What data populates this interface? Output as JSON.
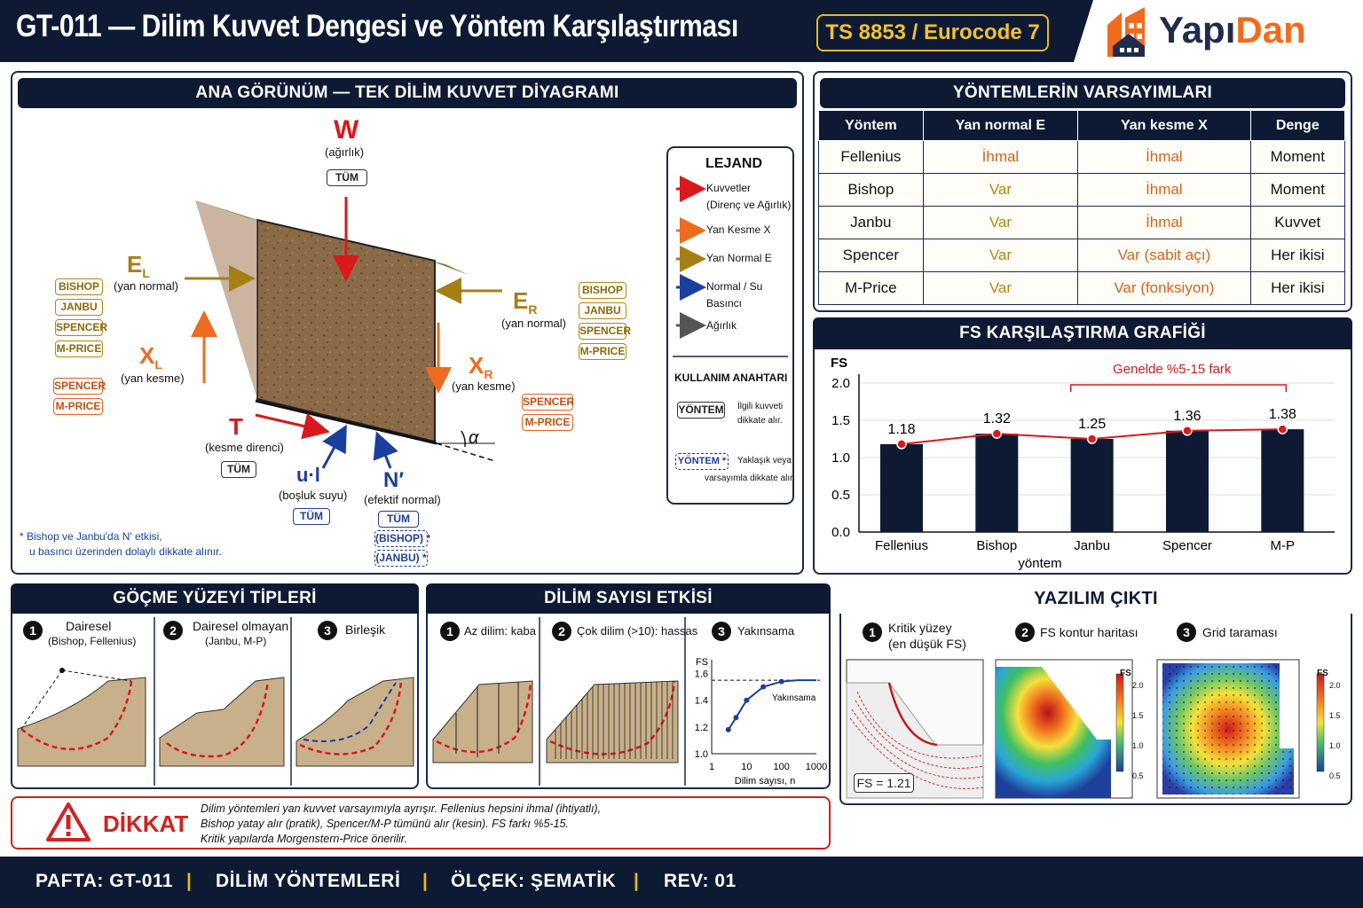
{
  "header": {
    "title": "GT-011 — Dilim Kuvvet Dengesi ve Yöntem Karşılaştırması",
    "standard": "TS 8853 / Eurocode 7",
    "logo_part1": "Yapı",
    "logo_part2": "Dan"
  },
  "main": {
    "title": "ANA GÖRÜNÜM — TEK DİLİM KUVVET DİYAGRAMI",
    "W": "W",
    "W_desc": "(ağırlık)",
    "W_tag": "TÜM",
    "EL": "E",
    "EL_sub": "L",
    "EL_desc": "(yan normal)",
    "EL_tags": [
      "BISHOP",
      "JANBU",
      "SPENCER",
      "M-PRICE"
    ],
    "XL": "X",
    "XL_sub": "L",
    "XL_desc": "(yan kesme)",
    "XL_tags": [
      "SPENCER",
      "M-PRICE"
    ],
    "ER": "E",
    "ER_sub": "R",
    "ER_desc": "(yan normal)",
    "ER_tags": [
      "BISHOP",
      "JANBU",
      "SPENCER",
      "M-PRICE"
    ],
    "XR": "X",
    "XR_sub": "R",
    "XR_desc": "(yan kesme)",
    "XR_tags": [
      "SPENCER",
      "M-PRICE"
    ],
    "T": "T",
    "T_desc": "(kesme direnci)",
    "T_tag": "TÜM",
    "ul": "u·l",
    "ul_desc": "(boşluk suyu)",
    "ul_tag": "TÜM",
    "N": "N′",
    "N_desc": "(efektif normal)",
    "N_tags": [
      "TÜM",
      "(BISHOP) *",
      "(JANBU) *"
    ],
    "alpha": "α",
    "note1": "*  Bishop ve Janbu'da N′ etkisi,",
    "note2": "u basıncı üzerinden dolaylı dikkate alınır.",
    "legend": {
      "title": "LEJAND",
      "items": [
        "Kuvvetler",
        "(Direnç ve Ağırlık)",
        "Yan Kesme X",
        "Yan Normal E",
        "Normal / Su",
        "Basıncı",
        "Ağırlık"
      ],
      "colors": {
        "force": "#d9191c",
        "shear": "#ef6b1f",
        "normal": "#a67f14",
        "water": "#1b3f9c",
        "weight": "#555555"
      },
      "key_title": "KULLANIM ANAHTARI",
      "key1_tag": "YÖNTEM",
      "key1_desc1": "İlgili kuvveti",
      "key1_desc2": "dikkate alır.",
      "key2_tag": "YÖNTEM *",
      "key2_desc1": "Yaklaşık veya",
      "key2_desc2": "varsayımla dikkate alır."
    }
  },
  "assumptions": {
    "title": "YÖNTEMLERİN VARSAYIMLARI",
    "headers": [
      "Yöntem",
      "Yan normal E",
      "Yan kesme X",
      "Denge"
    ],
    "rows": [
      [
        "Fellenius",
        "İhmal",
        "İhmal",
        "Moment"
      ],
      [
        "Bishop",
        "Var",
        "İhmal",
        "Moment"
      ],
      [
        "Janbu",
        "Var",
        "İhmal",
        "Kuvvet"
      ],
      [
        "Spencer",
        "Var",
        "Var (sabit açı)",
        "Her ikisi"
      ],
      [
        "M-Price",
        "Var",
        "Var (fonksiyon)",
        "Her ikisi"
      ]
    ]
  },
  "fs_chart": {
    "title": "FS KARŞILAŞTIRMA GRAFİĞİ",
    "annotation": "Genelde %5-15 fark"
  },
  "chart_data": [
    {
      "type": "bar",
      "title": "FS KARŞILAŞTIRMA GRAFİĞİ",
      "xlabel": "yöntem",
      "ylabel": "FS",
      "categories": [
        "Fellenius",
        "Bishop",
        "Janbu",
        "Spencer",
        "M-P"
      ],
      "values": [
        1.18,
        1.32,
        1.25,
        1.36,
        1.38
      ],
      "ylim": [
        0,
        2.0
      ],
      "yticks": [
        "0.0",
        "0.5",
        "1.0",
        "1.5",
        "2.0"
      ],
      "bar_color": "#0e1a33",
      "line_color": "#d9191c"
    },
    {
      "type": "line",
      "xlabel": "Dilim sayısı, n",
      "ylabel": "FS",
      "x": [
        3,
        5,
        10,
        30,
        100,
        300,
        1000
      ],
      "values": [
        1.18,
        1.27,
        1.4,
        1.5,
        1.54,
        1.55,
        1.55
      ],
      "xticks": [
        "1",
        "10",
        "100",
        "1000"
      ],
      "yticks": [
        "1.0",
        "1.2",
        "1.4",
        "1.6"
      ],
      "ylim": [
        1.0,
        1.65
      ],
      "asymptote": 1.55,
      "annotation": "Yakınsama"
    }
  ],
  "failure": {
    "title": "GÖÇME YÜZEYİ TİPLERİ",
    "items": [
      {
        "n": "1",
        "t": "Dairesel",
        "s": "(Bishop, Fellenius)"
      },
      {
        "n": "2",
        "t": "Dairesel olmayan",
        "s": "(Janbu, M-P)"
      },
      {
        "n": "3",
        "t": "Birleşik",
        "s": ""
      }
    ]
  },
  "slices": {
    "title": "DİLİM SAYISI ETKİSİ",
    "items": [
      {
        "n": "1",
        "t": "Az dilim: kaba"
      },
      {
        "n": "2",
        "t": "Çok dilim (>10): hassas"
      },
      {
        "n": "3",
        "t": "Yakınsama"
      }
    ]
  },
  "software": {
    "title": "YAZILIM ÇIKTI",
    "items": [
      {
        "n": "1",
        "t": "Kritik yüzey",
        "s": "(en düşük FS)"
      },
      {
        "n": "2",
        "t": "FS kontur haritası",
        "s": ""
      },
      {
        "n": "3",
        "t": "Grid taraması",
        "s": ""
      }
    ],
    "fs_value": "FS = 1.21",
    "scale_title": "FS",
    "scale": [
      "2.0",
      "1.5",
      "1.0",
      "0.5"
    ]
  },
  "warning": {
    "title": "DİKKAT",
    "lines": [
      "Dilim yöntemleri yan kuvvet varsayımıyla ayrışır. Fellenius hepsini ihmal (ihtiyatlı),",
      "Bishop yatay alır (pratik), Spencer/M-P tümünü alır (kesin). FS farkı %5-15.",
      "Kritik yapılarda Morgenstern-Price önerilir."
    ]
  },
  "footer": {
    "pafta": "PAFTA: GT-011",
    "name": "DİLİM YÖNTEMLERİ",
    "scale": "ÖLÇEK: ŞEMATİK",
    "rev": "REV: 01",
    "sep": "|"
  }
}
